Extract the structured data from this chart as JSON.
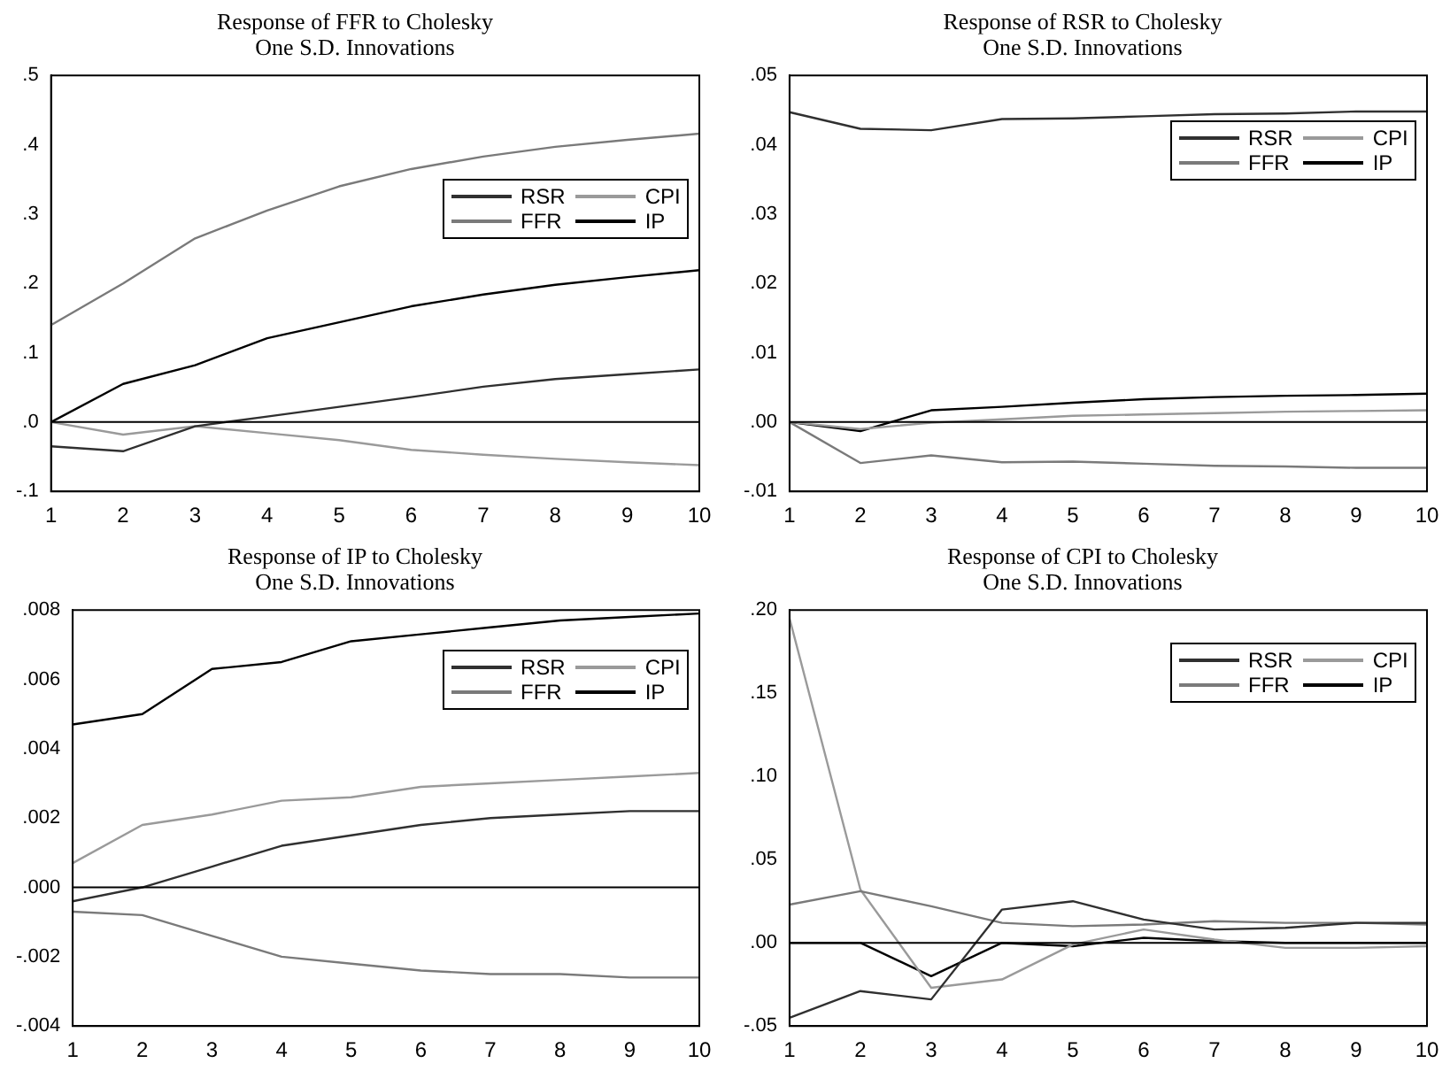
{
  "chart_data": [
    {
      "type": "line",
      "title": "Response of FFR to Cholesky\nOne S.D. Innovations",
      "categories": [
        "1",
        "2",
        "3",
        "4",
        "5",
        "6",
        "7",
        "8",
        "9",
        "10"
      ],
      "ylim": [
        -0.1,
        0.5
      ],
      "yticks": [
        {
          "value": -0.1,
          "label": "-.1"
        },
        {
          "value": 0,
          "label": ".0"
        },
        {
          "value": 0.1,
          "label": ".1"
        },
        {
          "value": 0.2,
          "label": ".2"
        },
        {
          "value": 0.3,
          "label": ".3"
        },
        {
          "value": 0.4,
          "label": ".4"
        },
        {
          "value": 0.5,
          "label": ".5"
        }
      ],
      "grid": false,
      "legend": "top right",
      "marker": "none",
      "line_style": "solid",
      "ref_lines": [
        {
          "axis": "y",
          "value": 0,
          "color": "#000000"
        }
      ],
      "series": [
        {
          "name": "RSR",
          "color": "#303030",
          "values": [
            -0.035,
            -0.042,
            -0.006,
            0.008,
            0.022,
            0.036,
            0.051,
            0.062,
            0.069,
            0.076
          ]
        },
        {
          "name": "FFR",
          "color": "#7a7a7a",
          "values": [
            0.14,
            0.2,
            0.265,
            0.305,
            0.34,
            0.365,
            0.383,
            0.397,
            0.407,
            0.416
          ]
        },
        {
          "name": "CPI",
          "color": "#9a9a9a",
          "values": [
            0,
            -0.018,
            -0.006,
            -0.016,
            -0.026,
            -0.04,
            -0.047,
            -0.053,
            -0.058,
            -0.062
          ]
        },
        {
          "name": "IP",
          "color": "#000000",
          "values": [
            0,
            0.055,
            0.082,
            0.121,
            0.144,
            0.167,
            0.184,
            0.198,
            0.209,
            0.219
          ]
        }
      ]
    },
    {
      "type": "line",
      "title": "Response of RSR to Cholesky\nOne S.D. Innovations",
      "categories": [
        "1",
        "2",
        "3",
        "4",
        "5",
        "6",
        "7",
        "8",
        "9",
        "10"
      ],
      "ylim": [
        -0.01,
        0.05
      ],
      "yticks": [
        {
          "value": -0.01,
          "label": "-.01"
        },
        {
          "value": 0,
          "label": ".00"
        },
        {
          "value": 0.01,
          "label": ".01"
        },
        {
          "value": 0.02,
          "label": ".02"
        },
        {
          "value": 0.03,
          "label": ".03"
        },
        {
          "value": 0.04,
          "label": ".04"
        },
        {
          "value": 0.05,
          "label": ".05"
        }
      ],
      "grid": false,
      "legend": "top right",
      "marker": "none",
      "line_style": "solid",
      "ref_lines": [
        {
          "axis": "y",
          "value": 0,
          "color": "#000000"
        }
      ],
      "series": [
        {
          "name": "RSR",
          "color": "#303030",
          "values": [
            0.0447,
            0.0423,
            0.0421,
            0.0437,
            0.0438,
            0.0441,
            0.0444,
            0.0445,
            0.0448,
            0.0448
          ]
        },
        {
          "name": "FFR",
          "color": "#7a7a7a",
          "values": [
            0,
            -0.0059,
            -0.0048,
            -0.0058,
            -0.0057,
            -0.006,
            -0.0063,
            -0.0064,
            -0.0066,
            -0.0066
          ]
        },
        {
          "name": "CPI",
          "color": "#9a9a9a",
          "values": [
            0,
            -0.001,
            -0.0001,
            0.0004,
            0.0009,
            0.0011,
            0.0013,
            0.0015,
            0.0016,
            0.0017
          ]
        },
        {
          "name": "IP",
          "color": "#000000",
          "values": [
            0,
            -0.0013,
            0.0017,
            0.0022,
            0.0028,
            0.0033,
            0.0036,
            0.0038,
            0.0039,
            0.0041
          ]
        }
      ]
    },
    {
      "type": "line",
      "title": "Response of IP to Cholesky\nOne S.D. Innovations",
      "categories": [
        "1",
        "2",
        "3",
        "4",
        "5",
        "6",
        "7",
        "8",
        "9",
        "10"
      ],
      "ylim": [
        -0.004,
        0.008
      ],
      "yticks": [
        {
          "value": -0.004,
          "label": "-.004"
        },
        {
          "value": -0.002,
          "label": "-.002"
        },
        {
          "value": 0,
          "label": ".000"
        },
        {
          "value": 0.002,
          "label": ".002"
        },
        {
          "value": 0.004,
          "label": ".004"
        },
        {
          "value": 0.006,
          "label": ".006"
        },
        {
          "value": 0.008,
          "label": ".008"
        }
      ],
      "grid": false,
      "legend": "top right",
      "marker": "none",
      "line_style": "solid",
      "ref_lines": [
        {
          "axis": "y",
          "value": 0,
          "color": "#000000"
        }
      ],
      "series": [
        {
          "name": "RSR",
          "color": "#303030",
          "values": [
            -0.0004,
            0,
            0.0006,
            0.0012,
            0.0015,
            0.0018,
            0.002,
            0.0021,
            0.0022,
            0.0022
          ]
        },
        {
          "name": "FFR",
          "color": "#7a7a7a",
          "values": [
            -0.0007,
            -0.0008,
            -0.0014,
            -0.002,
            -0.0022,
            -0.0024,
            -0.0025,
            -0.0025,
            -0.0026,
            -0.0026
          ]
        },
        {
          "name": "CPI",
          "color": "#9a9a9a",
          "values": [
            0.0007,
            0.0018,
            0.0021,
            0.0025,
            0.0026,
            0.0029,
            0.003,
            0.0031,
            0.0032,
            0.0033
          ]
        },
        {
          "name": "IP",
          "color": "#000000",
          "values": [
            0.0047,
            0.005,
            0.0063,
            0.0065,
            0.0071,
            0.0073,
            0.0075,
            0.0077,
            0.0078,
            0.0079
          ]
        }
      ]
    },
    {
      "type": "line",
      "title": "Response of CPI to Cholesky\nOne S.D. Innovations",
      "categories": [
        "1",
        "2",
        "3",
        "4",
        "5",
        "6",
        "7",
        "8",
        "9",
        "10"
      ],
      "ylim": [
        -0.05,
        0.2
      ],
      "yticks": [
        {
          "value": -0.05,
          "label": "-.05"
        },
        {
          "value": 0,
          "label": ".00"
        },
        {
          "value": 0.05,
          "label": ".05"
        },
        {
          "value": 0.1,
          "label": ".10"
        },
        {
          "value": 0.15,
          "label": ".15"
        },
        {
          "value": 0.2,
          "label": ".20"
        }
      ],
      "grid": false,
      "legend": "top right",
      "marker": "none",
      "line_style": "solid",
      "ref_lines": [
        {
          "axis": "y",
          "value": 0,
          "color": "#000000"
        }
      ],
      "series": [
        {
          "name": "RSR",
          "color": "#303030",
          "values": [
            -0.045,
            -0.029,
            -0.034,
            0.02,
            0.025,
            0.014,
            0.008,
            0.009,
            0.012,
            0.012
          ]
        },
        {
          "name": "FFR",
          "color": "#7a7a7a",
          "values": [
            0.023,
            0.031,
            0.022,
            0.012,
            0.01,
            0.011,
            0.013,
            0.012,
            0.012,
            0.011
          ]
        },
        {
          "name": "CPI",
          "color": "#9a9a9a",
          "values": [
            0.195,
            0.032,
            -0.027,
            -0.022,
            -0.001,
            0.008,
            0.002,
            -0.003,
            -0.003,
            -0.002
          ]
        },
        {
          "name": "IP",
          "color": "#000000",
          "values": [
            0,
            0,
            -0.02,
            0,
            -0.002,
            0.003,
            0.001,
            0,
            0,
            0
          ]
        }
      ]
    }
  ]
}
